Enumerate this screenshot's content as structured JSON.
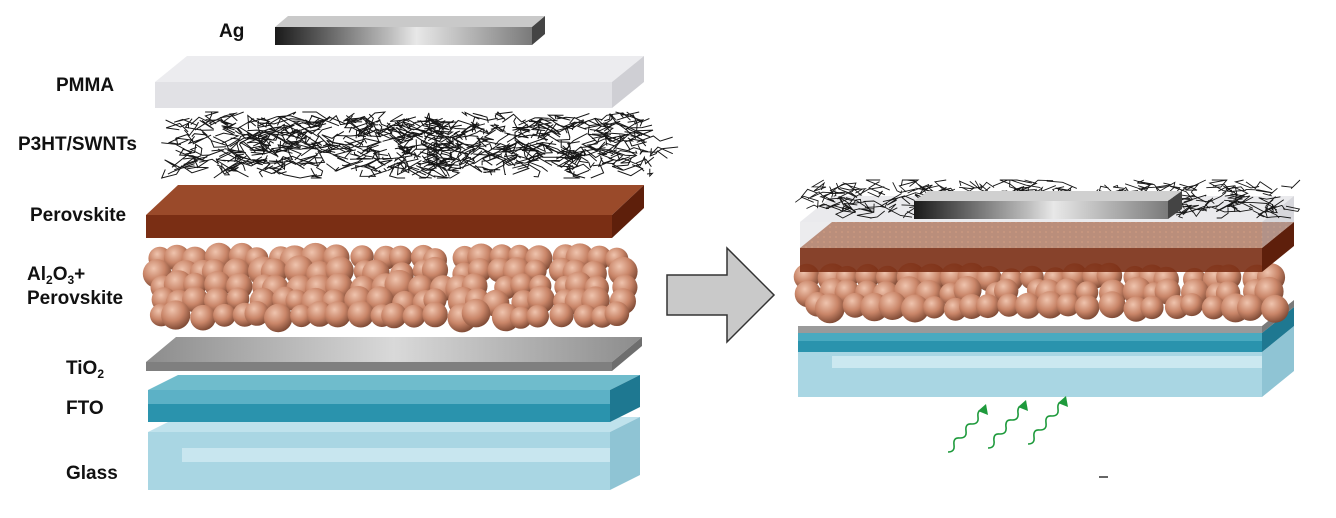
{
  "layers": [
    {
      "key": "ag",
      "label": "Ag"
    },
    {
      "key": "pmma",
      "label": "PMMA"
    },
    {
      "key": "p3ht",
      "label": "P3HT/SWNTs"
    },
    {
      "key": "perovskite",
      "label": "Perovskite"
    },
    {
      "key": "al2o3",
      "label_parts": [
        "Al",
        "2",
        "O",
        "3",
        "+"
      ],
      "label_line2": "Perovskite"
    },
    {
      "key": "tio2",
      "label_parts": [
        "TiO",
        "2"
      ]
    },
    {
      "key": "fto",
      "label": "FTO"
    },
    {
      "key": "glass",
      "label": "Glass"
    }
  ],
  "colors": {
    "ag": "#6a6a6a",
    "pmma": "#e6e6ea",
    "p3ht": "#1a1a1a",
    "perovskite": "#8a3a1c",
    "al2o3_spheres": "#c78a6e",
    "tio2": "#a8a8a8",
    "fto": "#2a93ad",
    "glass": "#a9d6e3",
    "arrow": "#c8c8c8",
    "light_waves": "#1e9a3c"
  },
  "icons": [
    "arrow-right-icon",
    "light-wave-icon"
  ]
}
